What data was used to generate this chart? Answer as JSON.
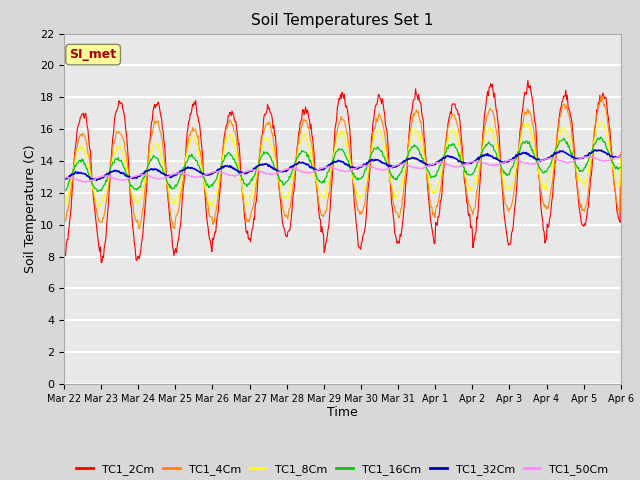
{
  "title": "Soil Temperatures Set 1",
  "xlabel": "Time",
  "ylabel": "Soil Temperature (C)",
  "ylim": [
    0,
    22
  ],
  "yticks": [
    0,
    2,
    4,
    6,
    8,
    10,
    12,
    14,
    16,
    18,
    20,
    22
  ],
  "bg_color": "#e8e8e8",
  "grid_color": "#ffffff",
  "fig_bg_color": "#d8d8d8",
  "line_colors": {
    "TC1_2Cm": "#ff0000",
    "TC1_4Cm": "#ff8800",
    "TC1_8Cm": "#ffff00",
    "TC1_16Cm": "#00cc00",
    "TC1_32Cm": "#0000cc",
    "TC1_50Cm": "#ff88ff"
  },
  "legend_labels": [
    "TC1_2Cm",
    "TC1_4Cm",
    "TC1_8Cm",
    "TC1_16Cm",
    "TC1_32Cm",
    "TC1_50Cm"
  ],
  "annotation_text": "SI_met",
  "annotation_color": "#aa0000",
  "annotation_bg": "#ffff99",
  "n_days": 15,
  "x_tick_labels": [
    "Mar 22",
    "Mar 23",
    "Mar 24",
    "Mar 25",
    "Mar 26",
    "Mar 27",
    "Mar 28",
    "Mar 29",
    "Mar 30",
    "Mar 31",
    "Apr 1",
    "Apr 2",
    "Apr 3",
    "Apr 4",
    "Apr 5",
    "Apr 6"
  ]
}
